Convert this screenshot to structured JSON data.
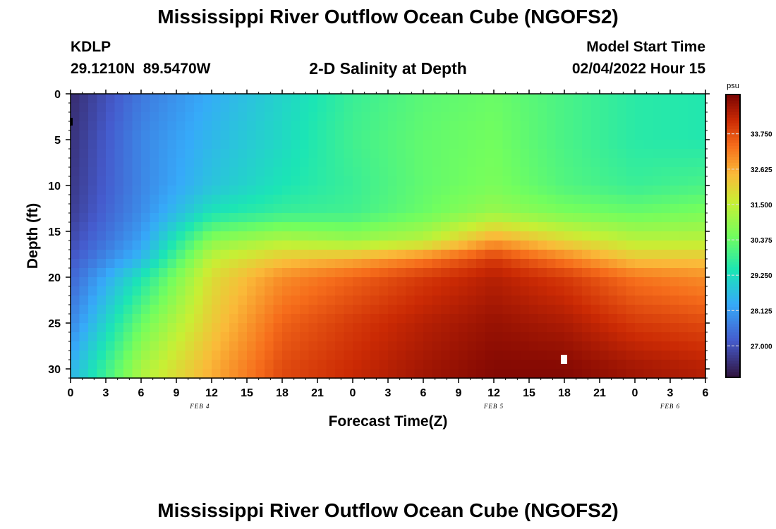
{
  "header": {
    "title": "Mississippi River Outflow Ocean Cube (NGOFS2)",
    "station": "KDLP",
    "coords": "29.1210N  89.5470W",
    "subtitle": "2-D Salinity at Depth",
    "model_label": "Model Start Time",
    "model_time": "02/04/2022 Hour 15"
  },
  "footer": {
    "title": "Mississippi River Outflow Ocean Cube (NGOFS2)"
  },
  "chart_data": {
    "type": "heatmap",
    "title": "2-D Salinity at Depth",
    "xlabel": "Forecast Time(Z)",
    "ylabel": "Depth (ft)",
    "x_ticks": [
      "0",
      "3",
      "6",
      "9",
      "12",
      "15",
      "18",
      "21",
      "0",
      "3",
      "6",
      "9",
      "12",
      "15",
      "18",
      "21",
      "0",
      "3",
      "6"
    ],
    "date_labels": [
      {
        "label": "FEB 4",
        "at_hour": 11
      },
      {
        "label": "FEB 5",
        "at_hour": 36
      },
      {
        "label": "FEB 6",
        "at_hour": 51
      }
    ],
    "x_range_hours": [
      0,
      54
    ],
    "y_ticks": [
      0,
      5,
      10,
      15,
      20,
      25,
      30
    ],
    "y_range_ft": [
      0,
      31
    ],
    "y_inverted": true,
    "colorbar": {
      "unit": "psu",
      "ticks": [
        "27.000",
        "28.125",
        "29.250",
        "30.375",
        "31.500",
        "32.625",
        "33.750"
      ],
      "range": [
        26.0,
        35.0
      ]
    },
    "description_grid": {
      "depths_ft": [
        0,
        5,
        10,
        13,
        16,
        18,
        20,
        25,
        30
      ],
      "hours": [
        0,
        6,
        12,
        18,
        24,
        30,
        36,
        42,
        48,
        54
      ],
      "values_psu": [
        [
          26.4,
          27.6,
          28.4,
          29.1,
          29.8,
          30.2,
          30.4,
          30.0,
          29.6,
          29.5
        ],
        [
          26.5,
          27.8,
          28.6,
          29.2,
          29.9,
          30.3,
          30.5,
          30.0,
          29.6,
          29.5
        ],
        [
          26.6,
          27.8,
          28.8,
          29.4,
          29.8,
          30.3,
          30.6,
          30.1,
          29.8,
          30.0
        ],
        [
          26.7,
          27.9,
          29.4,
          29.8,
          29.9,
          30.4,
          31.0,
          30.6,
          30.4,
          30.6
        ],
        [
          26.9,
          28.2,
          30.8,
          31.3,
          31.0,
          31.4,
          32.8,
          32.0,
          31.4,
          31.4
        ],
        [
          27.1,
          28.6,
          31.5,
          32.3,
          32.6,
          33.2,
          34.0,
          33.2,
          32.3,
          32.3
        ],
        [
          27.3,
          29.4,
          31.9,
          33.0,
          33.5,
          34.0,
          34.4,
          34.0,
          33.3,
          33.0
        ],
        [
          27.8,
          30.4,
          32.2,
          33.5,
          34.0,
          34.4,
          34.7,
          34.5,
          34.0,
          33.8
        ],
        [
          28.5,
          31.2,
          32.6,
          33.8,
          34.2,
          34.6,
          34.9,
          34.9,
          34.6,
          34.4
        ]
      ]
    }
  }
}
